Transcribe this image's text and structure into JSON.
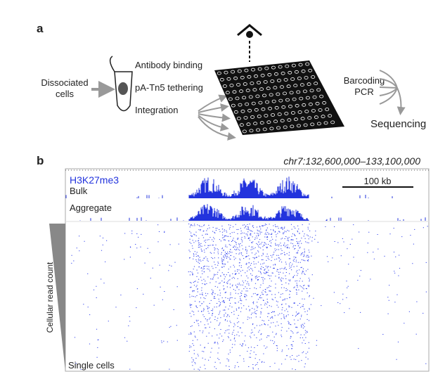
{
  "panel_a": {
    "label": "a",
    "input": [
      "Dissociated",
      "cells"
    ],
    "steps": [
      "Antibody binding",
      "pA-Tn5 tethering",
      "Integration"
    ],
    "barcoding": [
      "Barcoding",
      "PCR"
    ],
    "output": "Sequencing"
  },
  "panel_b": {
    "label": "b",
    "locus": "chr7:132,600,000–133,100,000",
    "mark": "H3K27me3",
    "bulk": "Bulk",
    "scale": "100 kb",
    "aggregate": "Aggregate",
    "axis": "Cellular read count",
    "single": "Single cells"
  }
}
